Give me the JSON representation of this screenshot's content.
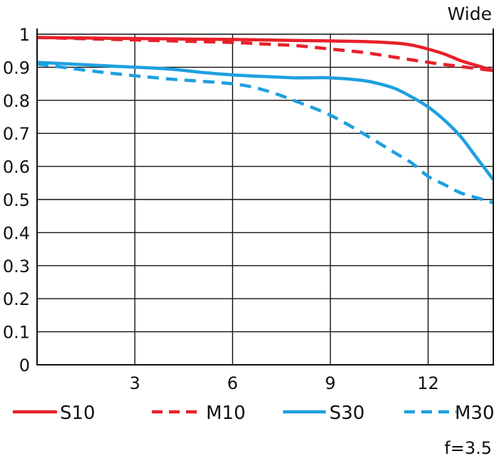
{
  "chart_data": {
    "type": "line",
    "title": "Wide",
    "footer": "f=3.5",
    "xlabel": "",
    "ylabel": "",
    "xlim": [
      0,
      14
    ],
    "ylim": [
      0,
      1
    ],
    "xticks": [
      3,
      6,
      9,
      12
    ],
    "yticks": [
      0,
      0.1,
      0.2,
      0.3,
      0.4,
      0.5,
      0.6,
      0.7,
      0.8,
      0.9,
      1
    ],
    "ytick_labels": [
      "0",
      "0.1",
      "0.2",
      "0.3",
      "0.4",
      "0.5",
      "0.6",
      "0.7",
      "0.8",
      "0.9",
      "1"
    ],
    "grid": true,
    "legend_position": "bottom",
    "series": [
      {
        "name": "S10",
        "color": "#e8202a",
        "dashed": false,
        "x": [
          0,
          2,
          4,
          6,
          8,
          10,
          11,
          11.5,
          12,
          12.5,
          13,
          13.5,
          14
        ],
        "y": [
          0.99,
          0.988,
          0.986,
          0.984,
          0.981,
          0.978,
          0.973,
          0.967,
          0.955,
          0.94,
          0.92,
          0.905,
          0.89
        ]
      },
      {
        "name": "M10",
        "color": "#e8202a",
        "dashed": true,
        "x": [
          0,
          2,
          4,
          6,
          7,
          8,
          9,
          10,
          11,
          12,
          13,
          14
        ],
        "y": [
          0.99,
          0.985,
          0.98,
          0.975,
          0.97,
          0.965,
          0.955,
          0.945,
          0.93,
          0.915,
          0.902,
          0.89
        ]
      },
      {
        "name": "S30",
        "color": "#1ea0e0",
        "dashed": false,
        "x": [
          0,
          2,
          4,
          5,
          6,
          7,
          8,
          9,
          10,
          10.5,
          11,
          11.5,
          12,
          12.5,
          13,
          13.5,
          14
        ],
        "y": [
          0.915,
          0.905,
          0.895,
          0.885,
          0.877,
          0.872,
          0.868,
          0.868,
          0.86,
          0.85,
          0.835,
          0.81,
          0.78,
          0.74,
          0.69,
          0.625,
          0.56
        ]
      },
      {
        "name": "M30",
        "color": "#1ea0e0",
        "dashed": true,
        "x": [
          0,
          2,
          4,
          6,
          7,
          8,
          9,
          10,
          11,
          11.5,
          12,
          12.5,
          13,
          13.5,
          14
        ],
        "y": [
          0.91,
          0.885,
          0.865,
          0.85,
          0.83,
          0.795,
          0.755,
          0.7,
          0.64,
          0.61,
          0.57,
          0.545,
          0.52,
          0.505,
          0.49
        ]
      }
    ]
  }
}
